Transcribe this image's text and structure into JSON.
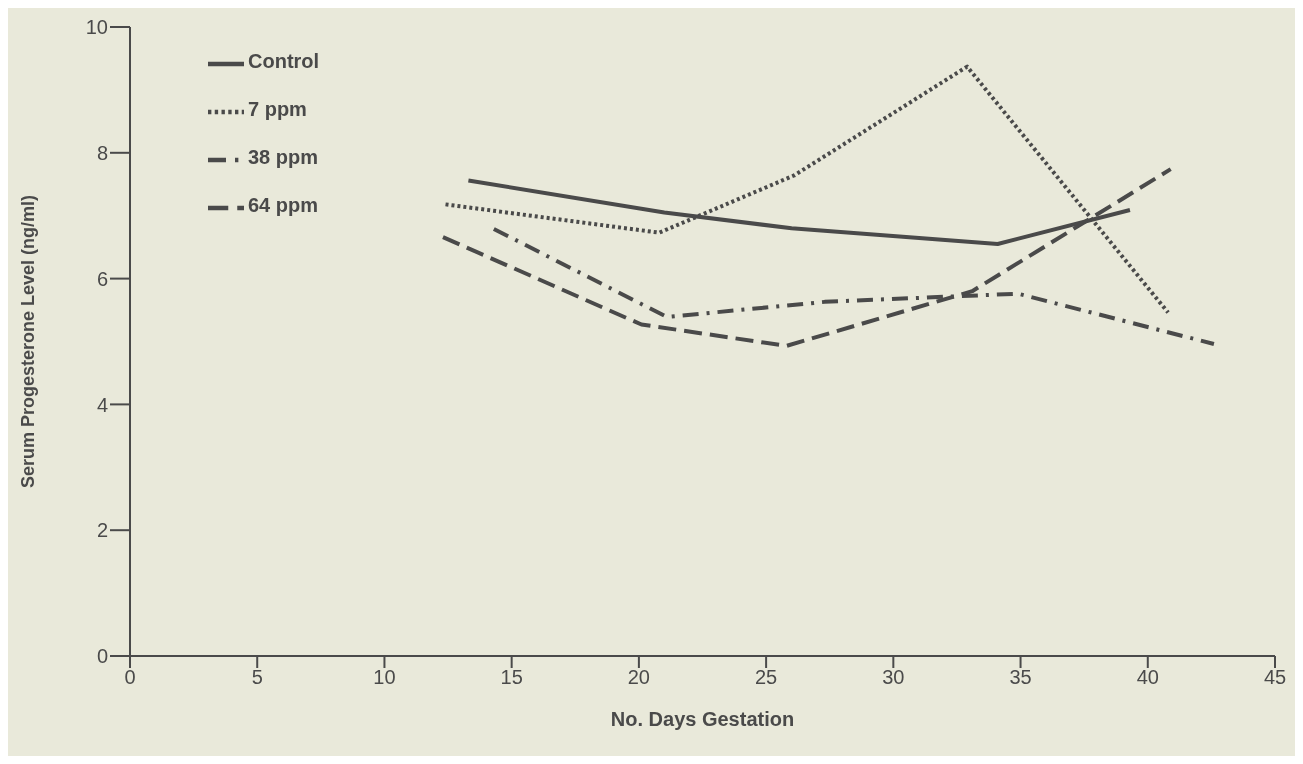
{
  "chart_data": {
    "type": "line",
    "xlabel": "No. Days Gestation",
    "ylabel": "Serum Progesterone Level (ng/ml)",
    "xlim": [
      0,
      45
    ],
    "xticks": [
      0,
      5,
      10,
      15,
      20,
      25,
      30,
      35,
      40,
      45
    ],
    "ylim": [
      0,
      10
    ],
    "yticks": [
      0,
      2,
      4,
      6,
      8,
      10
    ],
    "grid": false,
    "legend": "top left",
    "marker": "none",
    "series": [
      {
        "name": "Control",
        "color": "#4a4a4a",
        "line_style": "solid",
        "x": [
          13.3,
          21,
          26,
          34.1,
          39.3
        ],
        "values": [
          7.56,
          7.05,
          6.8,
          6.55,
          7.09
        ]
      },
      {
        "name": "7 ppm",
        "color": "#4a4a4a",
        "line_style": "dotted",
        "x": [
          12.4,
          20.8,
          26.1,
          32.9,
          40.8
        ],
        "values": [
          7.18,
          6.73,
          7.64,
          9.37,
          5.46
        ]
      },
      {
        "name": "38 ppm",
        "color": "#4a4a4a",
        "line_style": "dashdot",
        "x": [
          14.3,
          21.1,
          27.3,
          34.9,
          42.6
        ],
        "values": [
          6.79,
          5.39,
          5.63,
          5.76,
          4.96
        ]
      },
      {
        "name": "64 ppm",
        "color": "#4a4a4a",
        "line_style": "dashed",
        "x": [
          12.3,
          20.1,
          25.8,
          33.1,
          40.9
        ],
        "values": [
          6.66,
          5.27,
          4.93,
          5.8,
          7.74
        ]
      }
    ]
  }
}
